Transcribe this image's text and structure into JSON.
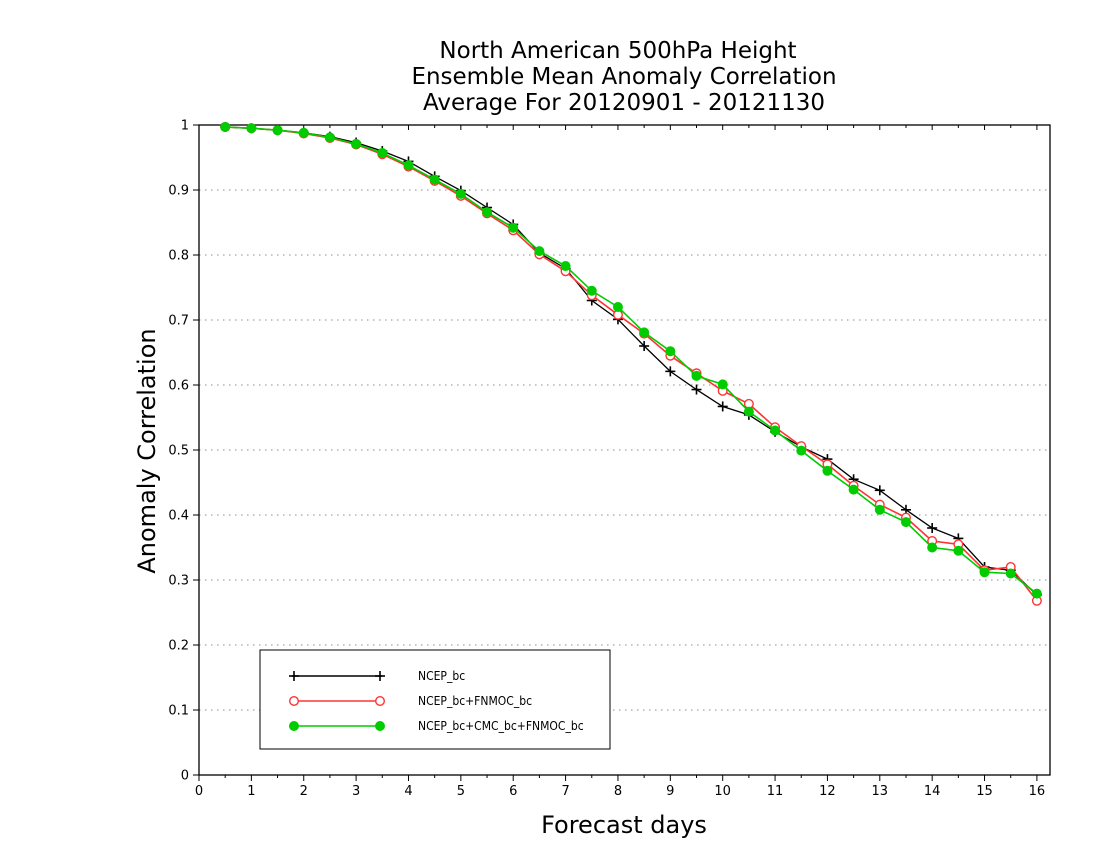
{
  "chart_data": {
    "type": "line",
    "title": [
      "North American 500hPa Height",
      "Ensemble Mean Anomaly Correlation",
      "Average For 20120901 - 20121130"
    ],
    "xlabel": "Forecast days",
    "ylabel": "Anomaly Correlation",
    "xlim": [
      0,
      16.25
    ],
    "ylim": [
      0,
      1
    ],
    "x_ticks": [
      0,
      1,
      2,
      3,
      4,
      5,
      6,
      7,
      8,
      9,
      10,
      11,
      12,
      13,
      14,
      15,
      16
    ],
    "y_ticks": [
      0,
      0.1,
      0.2,
      0.3,
      0.4,
      0.5,
      0.6,
      0.7,
      0.8,
      0.9,
      1
    ],
    "grid": "horizontal dotted",
    "legend_position": "lower-left",
    "x": [
      0.5,
      1,
      1.5,
      2,
      2.5,
      3,
      3.5,
      4,
      4.5,
      5,
      5.5,
      6,
      6.5,
      7,
      7.5,
      8,
      8.5,
      9,
      9.5,
      10,
      10.5,
      11,
      11.5,
      12,
      12.5,
      13,
      13.5,
      14,
      14.5,
      15,
      15.5,
      16
    ],
    "series": [
      {
        "name": "NCEP_bc",
        "color": "#000000",
        "marker": "plus",
        "values": [
          0.997,
          0.995,
          0.992,
          0.988,
          0.982,
          0.973,
          0.96,
          0.944,
          0.921,
          0.899,
          0.873,
          0.847,
          0.803,
          0.779,
          0.73,
          0.701,
          0.66,
          0.621,
          0.593,
          0.567,
          0.554,
          0.528,
          0.505,
          0.486,
          0.455,
          0.438,
          0.408,
          0.38,
          0.364,
          0.32,
          0.315,
          0.277
        ]
      },
      {
        "name": "NCEP_bc+FNMOC_bc",
        "color": "#ff3333",
        "marker": "open-circle",
        "values": [
          0.997,
          0.995,
          0.992,
          0.987,
          0.98,
          0.97,
          0.955,
          0.936,
          0.914,
          0.891,
          0.864,
          0.838,
          0.801,
          0.775,
          0.738,
          0.708,
          0.679,
          0.645,
          0.618,
          0.591,
          0.571,
          0.535,
          0.506,
          0.478,
          0.445,
          0.416,
          0.396,
          0.36,
          0.355,
          0.315,
          0.32,
          0.268
        ]
      },
      {
        "name": "NCEP_bc+CMC_bc+FNMOC_bc",
        "color": "#00cc00",
        "marker": "filled-circle",
        "values": [
          0.997,
          0.995,
          0.992,
          0.988,
          0.981,
          0.971,
          0.957,
          0.938,
          0.916,
          0.894,
          0.866,
          0.842,
          0.806,
          0.783,
          0.745,
          0.72,
          0.681,
          0.652,
          0.614,
          0.601,
          0.559,
          0.53,
          0.499,
          0.468,
          0.439,
          0.408,
          0.389,
          0.35,
          0.345,
          0.312,
          0.31,
          0.279
        ]
      }
    ]
  }
}
